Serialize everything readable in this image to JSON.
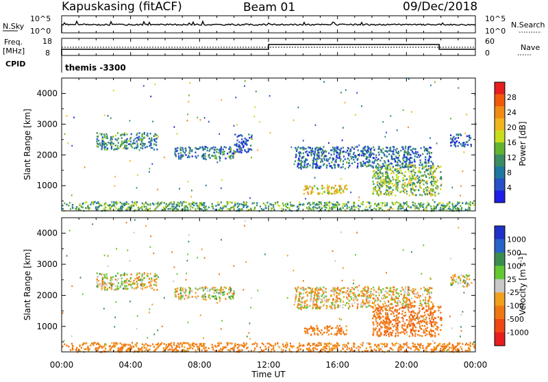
{
  "header": {
    "station": "Kapuskasing (fitACF)",
    "beam": "Beam 01",
    "date": "09/Dec/2018"
  },
  "strip_panels": {
    "nsky_label": "N.Sky",
    "nsky_ticks": [
      "10^5",
      "10^0"
    ],
    "nsearch_label": "N.Search",
    "nsearch_ticks": [
      "10^5",
      "10^0"
    ],
    "freq_label_1": "Freq.",
    "freq_label_2": "[MHz]",
    "freq_ticks": [
      "18",
      "8"
    ],
    "nave_label": "Nave",
    "nave_ticks": [
      "60",
      "0"
    ],
    "cpid_label": "CPID",
    "cpid_value": "themis -3300"
  },
  "colors": {
    "power_scale": [
      "#1e1ee6",
      "#2850c8",
      "#1e78a0",
      "#3c8c64",
      "#64b432",
      "#c8dc1e",
      "#f0b41e",
      "#f08c14",
      "#f05a0a",
      "#e61e1e"
    ],
    "velocity_scale": [
      "#1e32c8",
      "#2864c8",
      "#3c8c50",
      "#64c832",
      "#c8c8c8",
      "#c8c8c8",
      "#f0a01e",
      "#f07814",
      "#f04614",
      "#e61e1e"
    ]
  },
  "chart_data": [
    {
      "type": "heatmap",
      "panel": "power",
      "ylabel": "Slant Range [km]",
      "yticks": [
        "1000",
        "2000",
        "3000",
        "4000"
      ],
      "ylim": [
        180,
        4500
      ],
      "xlim_hours": [
        0,
        24
      ],
      "colorbar_label": "Power [dB]",
      "colorbar_ticks": [
        "4",
        "8",
        "12",
        "16",
        "20",
        "24",
        "28"
      ],
      "echo_bands": [
        {
          "t_start": "02:00",
          "t_end": "05:30",
          "range_km": [
            2200,
            2750
          ],
          "level_db": 12
        },
        {
          "t_start": "06:30",
          "t_end": "10:00",
          "range_km": [
            1900,
            2300
          ],
          "level_db": 10
        },
        {
          "t_start": "10:00",
          "t_end": "11:00",
          "range_km": [
            2100,
            2700
          ],
          "level_db": 8
        },
        {
          "t_start": "13:30",
          "t_end": "21:30",
          "range_km": [
            1600,
            2300
          ],
          "level_db": 9
        },
        {
          "t_start": "14:00",
          "t_end": "16:30",
          "range_km": [
            750,
            1050
          ],
          "level_db": 20
        },
        {
          "t_start": "18:00",
          "t_end": "22:00",
          "range_km": [
            700,
            1700
          ],
          "level_db": 16
        },
        {
          "t_start": "22:30",
          "t_end": "23:45",
          "range_km": [
            2300,
            2700
          ],
          "level_db": 8
        },
        {
          "t_start": "00:00",
          "t_end": "24:00",
          "range_km": [
            180,
            500
          ],
          "level_db": 14
        }
      ]
    },
    {
      "type": "heatmap",
      "panel": "velocity",
      "ylabel": "Slant Range [km]",
      "yticks": [
        "1000",
        "2000",
        "3000",
        "4000"
      ],
      "ylim": [
        180,
        4500
      ],
      "xlim_hours": [
        0,
        24
      ],
      "xticks": [
        "00:00",
        "04:00",
        "08:00",
        "12:00",
        "16:00",
        "20:00",
        "00:00"
      ],
      "xlabel": "Time UT",
      "colorbar_label": "Velocity [m s^-1]",
      "colorbar_ticks": [
        "1000",
        "500",
        "100",
        "25",
        "-25",
        "-100",
        "-500",
        "-1000"
      ],
      "echo_bands": [
        {
          "t_start": "02:00",
          "t_end": "05:30",
          "range_km": [
            2200,
            2750
          ],
          "velocity": 0
        },
        {
          "t_start": "06:30",
          "t_end": "10:00",
          "range_km": [
            1900,
            2300
          ],
          "velocity": 0
        },
        {
          "t_start": "13:30",
          "t_end": "21:30",
          "range_km": [
            1600,
            2300
          ],
          "velocity": -50
        },
        {
          "t_start": "14:00",
          "t_end": "16:30",
          "range_km": [
            750,
            1050
          ],
          "velocity": -200
        },
        {
          "t_start": "18:00",
          "t_end": "22:00",
          "range_km": [
            700,
            1700
          ],
          "velocity": -400
        },
        {
          "t_start": "22:30",
          "t_end": "23:45",
          "range_km": [
            2300,
            2700
          ],
          "velocity": 0
        },
        {
          "t_start": "00:00",
          "t_end": "24:00",
          "range_km": [
            180,
            500
          ],
          "velocity": -150
        }
      ]
    }
  ]
}
